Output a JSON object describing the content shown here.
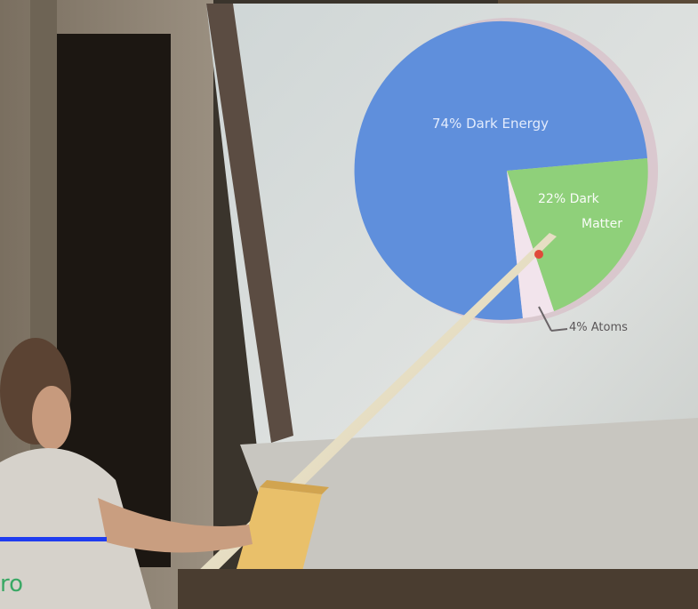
{
  "slide": {
    "energy_label": "74% Dark Energy",
    "matter_label_line1": "22% Dark",
    "matter_label_line2": "Matter",
    "atoms_label": "4% Atoms"
  },
  "colors": {
    "dark_energy": "#5f8fdc",
    "dark_matter": "#8fd07a",
    "atoms": "#f2e4ec",
    "screen": "#d8dcdc"
  },
  "fragment_text": "ro"
}
